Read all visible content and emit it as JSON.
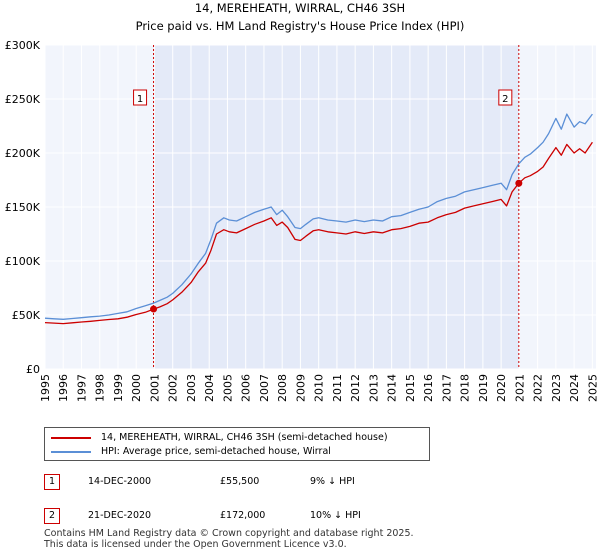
{
  "chart_data": {
    "type": "line",
    "title": "14, MEREHEATH, WIRRAL, CH46 3SH",
    "subtitle": "Price paid vs. HM Land Registry's House Price Index (HPI)",
    "ylim": [
      0,
      300000
    ],
    "xlim": [
      1995,
      2025.2
    ],
    "yticks": [
      {
        "value": 0,
        "label": "£0"
      },
      {
        "value": 50000,
        "label": "£50K"
      },
      {
        "value": 100000,
        "label": "£100K"
      },
      {
        "value": 150000,
        "label": "£150K"
      },
      {
        "value": 200000,
        "label": "£200K"
      },
      {
        "value": 250000,
        "label": "£250K"
      },
      {
        "value": 300000,
        "label": "£300K"
      }
    ],
    "xticks": [
      "1995",
      "1996",
      "1997",
      "1998",
      "1999",
      "2000",
      "2001",
      "2002",
      "2003",
      "2004",
      "2005",
      "2006",
      "2007",
      "2008",
      "2009",
      "2010",
      "2011",
      "2012",
      "2013",
      "2014",
      "2015",
      "2016",
      "2017",
      "2018",
      "2019",
      "2020",
      "2021",
      "2022",
      "2023",
      "2024",
      "2025"
    ],
    "shaded_range": [
      2000.95,
      2020.97
    ],
    "series": [
      {
        "name": "14, MEREHEATH, WIRRAL, CH46 3SH (semi-detached house)",
        "color": "#cc0000",
        "x": [
          1995,
          1995.5,
          1996,
          1996.5,
          1997,
          1997.5,
          1998,
          1998.5,
          1999,
          1999.5,
          2000,
          2000.5,
          2000.95,
          2001.3,
          2001.7,
          2002,
          2002.5,
          2003,
          2003.4,
          2003.8,
          2004.1,
          2004.4,
          2004.8,
          2005.1,
          2005.5,
          2006,
          2006.5,
          2007,
          2007.4,
          2007.7,
          2008,
          2008.3,
          2008.7,
          2009,
          2009.3,
          2009.7,
          2010,
          2010.5,
          2011,
          2011.5,
          2012,
          2012.5,
          2013,
          2013.5,
          2014,
          2014.5,
          2015,
          2015.5,
          2016,
          2016.5,
          2017,
          2017.5,
          2018,
          2018.5,
          2019,
          2019.5,
          2020,
          2020.3,
          2020.6,
          2020.97,
          2021.3,
          2021.6,
          2022,
          2022.3,
          2022.6,
          2023,
          2023.3,
          2023.6,
          2024,
          2024.3,
          2024.6,
          2025
        ],
        "values": [
          43000,
          42500,
          42000,
          42800,
          43500,
          44200,
          45000,
          45800,
          46500,
          48000,
          50500,
          52500,
          55500,
          57500,
          60500,
          64000,
          71000,
          80000,
          90000,
          98000,
          110000,
          125000,
          129000,
          127000,
          126000,
          130000,
          134000,
          137000,
          140000,
          133000,
          136000,
          131000,
          120000,
          119000,
          123000,
          128000,
          129000,
          127000,
          126000,
          125000,
          127000,
          125500,
          127000,
          126000,
          129000,
          130000,
          132000,
          135000,
          136000,
          140000,
          143000,
          145000,
          149000,
          151000,
          153000,
          155000,
          157000,
          151000,
          164000,
          172000,
          177000,
          179000,
          183000,
          187000,
          195000,
          205000,
          198000,
          208000,
          200000,
          204000,
          200000,
          210000
        ]
      },
      {
        "name": "HPI: Average price, semi-detached house, Wirral",
        "color": "#5b8fd6",
        "x": [
          1995,
          1995.5,
          1996,
          1996.5,
          1997,
          1997.5,
          1998,
          1998.5,
          1999,
          1999.5,
          2000,
          2000.5,
          2000.95,
          2001.3,
          2001.7,
          2002,
          2002.5,
          2003,
          2003.4,
          2003.8,
          2004.1,
          2004.4,
          2004.8,
          2005.1,
          2005.5,
          2006,
          2006.5,
          2007,
          2007.4,
          2007.7,
          2008,
          2008.3,
          2008.7,
          2009,
          2009.3,
          2009.7,
          2010,
          2010.5,
          2011,
          2011.5,
          2012,
          2012.5,
          2013,
          2013.5,
          2014,
          2014.5,
          2015,
          2015.5,
          2016,
          2016.5,
          2017,
          2017.5,
          2018,
          2018.5,
          2019,
          2019.5,
          2020,
          2020.3,
          2020.6,
          2020.97,
          2021.3,
          2021.6,
          2022,
          2022.3,
          2022.6,
          2023,
          2023.3,
          2023.6,
          2024,
          2024.3,
          2024.6,
          2025
        ],
        "values": [
          47000,
          46500,
          46000,
          46800,
          47500,
          48300,
          49000,
          50000,
          51500,
          53000,
          56000,
          58500,
          61000,
          63500,
          66500,
          70000,
          78000,
          88000,
          98000,
          107000,
          120000,
          135000,
          140000,
          138000,
          137000,
          141000,
          145000,
          148000,
          150000,
          143000,
          147000,
          141000,
          131000,
          130000,
          134000,
          139000,
          140000,
          138000,
          137000,
          136000,
          138000,
          136500,
          138000,
          137000,
          141000,
          142000,
          145000,
          148000,
          150000,
          155000,
          158000,
          160000,
          164000,
          166000,
          168000,
          170000,
          172000,
          166000,
          180000,
          190000,
          196000,
          199000,
          205000,
          210000,
          218000,
          232000,
          222000,
          236000,
          224000,
          229000,
          227000,
          236000
        ]
      }
    ],
    "annotations": [
      {
        "label": "1",
        "x": 2000.95,
        "y": 55500
      },
      {
        "label": "2",
        "x": 2020.97,
        "y": 172000
      }
    ]
  },
  "legend": {
    "items": [
      {
        "label": "14, MEREHEATH, WIRRAL, CH46 3SH (semi-detached house)",
        "color": "#cc0000"
      },
      {
        "label": "HPI: Average price, semi-detached house, Wirral",
        "color": "#5b8fd6"
      }
    ]
  },
  "sales": [
    {
      "num": "1",
      "date": "14-DEC-2000",
      "price": "£55,500",
      "hpi": "9% ↓ HPI"
    },
    {
      "num": "2",
      "date": "21-DEC-2020",
      "price": "£172,000",
      "hpi": "10% ↓ HPI"
    }
  ],
  "footer": {
    "line1": "Contains HM Land Registry data © Crown copyright and database right 2025.",
    "line2": "This data is licensed under the Open Government Licence v3.0."
  }
}
